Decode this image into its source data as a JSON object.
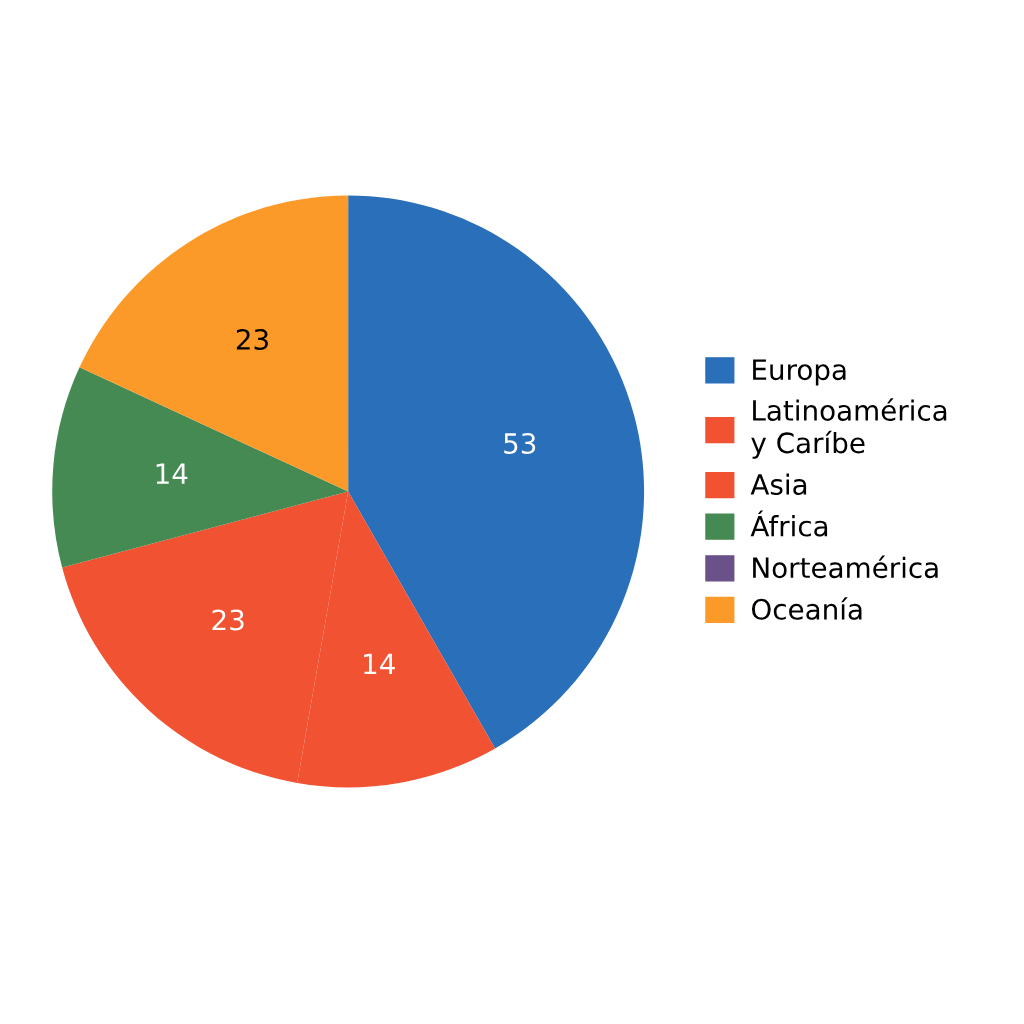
{
  "chart_data": {
    "type": "pie",
    "categories": [
      "Europa",
      "Latinoamérica\ny Caríbe",
      "Asia",
      "África",
      "Norteamérica",
      "Oceanía"
    ],
    "values": [
      53,
      14,
      23,
      14,
      0,
      23
    ],
    "colors": [
      "#2a6fba",
      "#f05232",
      "#f05232",
      "#458a52",
      "#6a5189",
      "#fb9a28"
    ],
    "value_labels": [
      "53",
      "14",
      "23",
      "14",
      null,
      "23"
    ],
    "legend": "right"
  }
}
